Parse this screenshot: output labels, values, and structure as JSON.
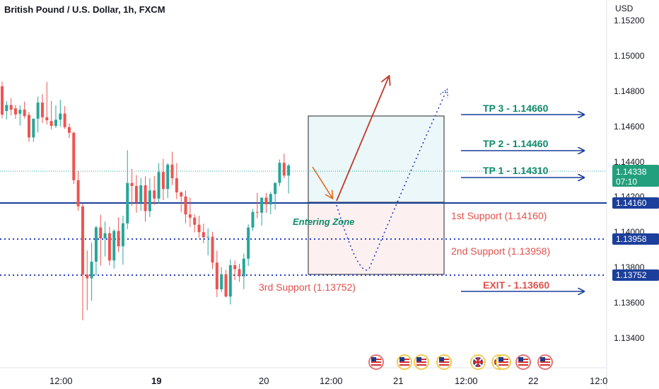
{
  "chart_data": {
    "type": "candlestick",
    "title": "British Pound / U.S. Dollar, 1h, FXCM",
    "currency": "USD",
    "colors": {
      "up": "#26a69a",
      "down": "#ef5350",
      "plan_blue": "#1c3f9c",
      "tp_green": "#0f8a6a",
      "support_red": "#e0514c",
      "exit_red": "#e0514c",
      "arrow_red": "#c0392b",
      "arrow_orange": "#e26a1d",
      "dotted_blue": "#2a3fc4"
    },
    "ylim": [
      1.1325,
      1.1525
    ],
    "y_ticks": [
      "1.13400",
      "1.13600",
      "1.13800",
      "1.14000",
      "1.14200",
      "1.14400",
      "1.14600",
      "1.14800",
      "1.15000",
      "1.15200"
    ],
    "x_ticks": [
      "12:00",
      "19",
      "20",
      "12:00",
      "21",
      "12:00",
      "22",
      "12:0"
    ],
    "candles": [
      {
        "o": 1.14786,
        "h": 1.14812,
        "l": 1.14606,
        "c": 1.14626
      },
      {
        "o": 1.14646,
        "h": 1.14702,
        "l": 1.14598,
        "c": 1.1468
      },
      {
        "o": 1.1468,
        "h": 1.14719,
        "l": 1.14622,
        "c": 1.14654
      },
      {
        "o": 1.14661,
        "h": 1.1468,
        "l": 1.14602,
        "c": 1.14627
      },
      {
        "o": 1.14631,
        "h": 1.14678,
        "l": 1.14564,
        "c": 1.14653
      },
      {
        "o": 1.14654,
        "h": 1.14699,
        "l": 1.14604,
        "c": 1.14618
      },
      {
        "o": 1.14624,
        "h": 1.14641,
        "l": 1.14472,
        "c": 1.14497
      },
      {
        "o": 1.14497,
        "h": 1.14599,
        "l": 1.14472,
        "c": 1.14603
      },
      {
        "o": 1.14603,
        "h": 1.14728,
        "l": 1.14524,
        "c": 1.14694
      },
      {
        "o": 1.14694,
        "h": 1.14741,
        "l": 1.14579,
        "c": 1.14611
      },
      {
        "o": 1.14611,
        "h": 1.14811,
        "l": 1.1457,
        "c": 1.14594
      },
      {
        "o": 1.1459,
        "h": 1.14704,
        "l": 1.14542,
        "c": 1.14562
      },
      {
        "o": 1.14562,
        "h": 1.14679,
        "l": 1.1455,
        "c": 1.14597
      },
      {
        "o": 1.14597,
        "h": 1.1471,
        "l": 1.14559,
        "c": 1.14632
      },
      {
        "o": 1.14632,
        "h": 1.14674,
        "l": 1.14545,
        "c": 1.14555
      },
      {
        "o": 1.14555,
        "h": 1.14576,
        "l": 1.14494,
        "c": 1.14523
      },
      {
        "o": 1.14523,
        "h": 1.1453,
        "l": 1.14234,
        "c": 1.14255
      },
      {
        "o": 1.14255,
        "h": 1.14306,
        "l": 1.14082,
        "c": 1.14107
      },
      {
        "o": 1.14107,
        "h": 1.14125,
        "l": 1.13462,
        "c": 1.13721
      },
      {
        "o": 1.13721,
        "h": 1.13857,
        "l": 1.1352,
        "c": 1.137
      },
      {
        "o": 1.137,
        "h": 1.13902,
        "l": 1.13574,
        "c": 1.13794
      },
      {
        "o": 1.13794,
        "h": 1.13997,
        "l": 1.13716,
        "c": 1.13988
      },
      {
        "o": 1.13988,
        "h": 1.1406,
        "l": 1.13771,
        "c": 1.13926
      },
      {
        "o": 1.13926,
        "h": 1.14021,
        "l": 1.13824,
        "c": 1.13955
      },
      {
        "o": 1.13955,
        "h": 1.13991,
        "l": 1.13774,
        "c": 1.13801
      },
      {
        "o": 1.13801,
        "h": 1.13977,
        "l": 1.13755,
        "c": 1.13968
      },
      {
        "o": 1.13968,
        "h": 1.14045,
        "l": 1.13848,
        "c": 1.13881
      },
      {
        "o": 1.13881,
        "h": 1.14054,
        "l": 1.13777,
        "c": 1.14011
      },
      {
        "o": 1.14011,
        "h": 1.14424,
        "l": 1.13978,
        "c": 1.14239
      },
      {
        "o": 1.14239,
        "h": 1.14319,
        "l": 1.1411,
        "c": 1.14222
      },
      {
        "o": 1.14222,
        "h": 1.14284,
        "l": 1.14071,
        "c": 1.14131
      },
      {
        "o": 1.14131,
        "h": 1.14268,
        "l": 1.14082,
        "c": 1.14226
      },
      {
        "o": 1.14226,
        "h": 1.14277,
        "l": 1.1402,
        "c": 1.1408
      },
      {
        "o": 1.1408,
        "h": 1.14266,
        "l": 1.14047,
        "c": 1.14197
      },
      {
        "o": 1.14197,
        "h": 1.14279,
        "l": 1.14115,
        "c": 1.14151
      },
      {
        "o": 1.14151,
        "h": 1.14351,
        "l": 1.14122,
        "c": 1.14301
      },
      {
        "o": 1.14301,
        "h": 1.14376,
        "l": 1.14142,
        "c": 1.14205
      },
      {
        "o": 1.14205,
        "h": 1.14351,
        "l": 1.14154,
        "c": 1.14343
      },
      {
        "o": 1.14343,
        "h": 1.14416,
        "l": 1.14227,
        "c": 1.14266
      },
      {
        "o": 1.14266,
        "h": 1.14352,
        "l": 1.14148,
        "c": 1.14186
      },
      {
        "o": 1.14186,
        "h": 1.14192,
        "l": 1.14075,
        "c": 1.14163
      },
      {
        "o": 1.14163,
        "h": 1.14197,
        "l": 1.14011,
        "c": 1.14061
      },
      {
        "o": 1.14061,
        "h": 1.14157,
        "l": 1.1399,
        "c": 1.14043
      },
      {
        "o": 1.14043,
        "h": 1.14061,
        "l": 1.1396,
        "c": 1.14003
      },
      {
        "o": 1.14003,
        "h": 1.14054,
        "l": 1.13929,
        "c": 1.13961
      },
      {
        "o": 1.13961,
        "h": 1.14009,
        "l": 1.13898,
        "c": 1.13932
      },
      {
        "o": 1.13932,
        "h": 1.13983,
        "l": 1.1383,
        "c": 1.13935
      },
      {
        "o": 1.13935,
        "h": 1.13963,
        "l": 1.13753,
        "c": 1.13789
      },
      {
        "o": 1.13789,
        "h": 1.13856,
        "l": 1.13594,
        "c": 1.13638
      },
      {
        "o": 1.13638,
        "h": 1.13763,
        "l": 1.13623,
        "c": 1.13723
      },
      {
        "o": 1.13723,
        "h": 1.13748,
        "l": 1.13592,
        "c": 1.13597
      },
      {
        "o": 1.13597,
        "h": 1.13807,
        "l": 1.13552,
        "c": 1.13774
      },
      {
        "o": 1.13774,
        "h": 1.13801,
        "l": 1.1369,
        "c": 1.13752
      },
      {
        "o": 1.13752,
        "h": 1.13782,
        "l": 1.1368,
        "c": 1.13711
      },
      {
        "o": 1.13711,
        "h": 1.1384,
        "l": 1.13639,
        "c": 1.13811
      },
      {
        "o": 1.13811,
        "h": 1.14005,
        "l": 1.1377,
        "c": 1.13987
      },
      {
        "o": 1.13987,
        "h": 1.14092,
        "l": 1.13968,
        "c": 1.14075
      },
      {
        "o": 1.14075,
        "h": 1.14183,
        "l": 1.14039,
        "c": 1.14071
      },
      {
        "o": 1.14071,
        "h": 1.14157,
        "l": 1.13999,
        "c": 1.14156
      },
      {
        "o": 1.14156,
        "h": 1.14183,
        "l": 1.1407,
        "c": 1.14118
      },
      {
        "o": 1.14118,
        "h": 1.14189,
        "l": 1.14062,
        "c": 1.14177
      },
      {
        "o": 1.14177,
        "h": 1.14241,
        "l": 1.14089,
        "c": 1.1424
      },
      {
        "o": 1.1424,
        "h": 1.14372,
        "l": 1.14223,
        "c": 1.14353
      },
      {
        "o": 1.14353,
        "h": 1.14405,
        "l": 1.14266,
        "c": 1.14281
      },
      {
        "o": 1.14281,
        "h": 1.14348,
        "l": 1.1418,
        "c": 1.14338
      }
    ],
    "price_labels": [
      {
        "value": "1.14338",
        "sub": "07:10",
        "style": "green"
      },
      {
        "value": "1.14160",
        "style": "blue"
      },
      {
        "value": "1.13958",
        "style": "blue"
      },
      {
        "value": "1.13752",
        "style": "blue"
      }
    ],
    "annotations": {
      "tp3": "TP 3 - 1.14660",
      "tp2": "TP 2 - 1.14460",
      "tp1": "TP 1 - 1.14310",
      "exit": "EXIT - 1.13660",
      "support1": "1st Support (1.14160)",
      "support2": "2nd Support (1.13958)",
      "support3": "3rd Support (1.13752)",
      "zone": "Entering Zone"
    },
    "levels": {
      "support1": 1.1416,
      "support2": 1.13958,
      "support3": 1.13752,
      "current": 1.14338,
      "tp_box_top": 1.14655
    },
    "event_flags": [
      "us-flag-icon",
      "us-flag-icon",
      "us-flag-icon",
      "us-flag-icon",
      "uk-flag-icon",
      "uk-flag-icon",
      "us-flag-icon",
      "us-flag-icon",
      "us-flag-icon"
    ]
  }
}
